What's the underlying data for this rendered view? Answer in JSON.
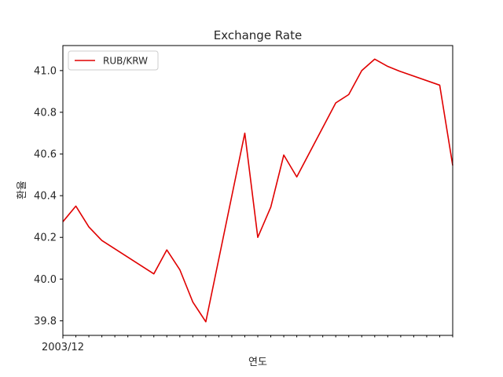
{
  "chart_data": {
    "type": "line",
    "title": "Exchange Rate",
    "xlabel": "연도",
    "ylabel": "환율",
    "x_tick_label": "2003/12",
    "ylim": [
      39.73,
      41.12
    ],
    "y_ticks": [
      "39.8",
      "40.0",
      "40.2",
      "40.4",
      "40.6",
      "40.8",
      "41.0"
    ],
    "y_tick_values": [
      39.8,
      40.0,
      40.2,
      40.4,
      40.6,
      40.8,
      41.0
    ],
    "x_index_range": [
      0,
      30
    ],
    "x_minor_tick_count": 31,
    "legend": {
      "position": "upper-left",
      "entries": [
        "RUB/KRW"
      ]
    },
    "grid": false,
    "colors": {
      "series": "#e00000",
      "axis": "#000000"
    },
    "series": [
      {
        "name": "RUB/KRW",
        "x": [
          0,
          1,
          2,
          3,
          7,
          8,
          9,
          10,
          11,
          14,
          15,
          16,
          17,
          18,
          21,
          22,
          23,
          24,
          25,
          26,
          29,
          30
        ],
        "values": [
          40.275,
          40.35,
          40.25,
          40.185,
          40.025,
          40.14,
          40.045,
          39.89,
          39.795,
          40.7,
          40.2,
          40.345,
          40.595,
          40.49,
          40.845,
          40.885,
          41.0,
          41.055,
          41.02,
          40.995,
          40.93,
          40.545
        ]
      }
    ]
  }
}
